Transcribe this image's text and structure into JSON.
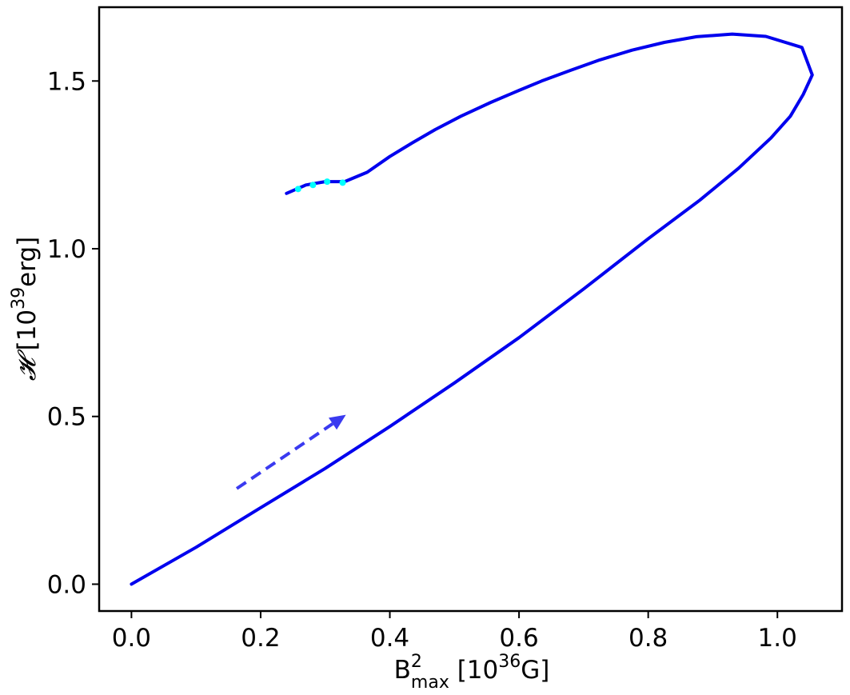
{
  "chart_data": {
    "type": "line",
    "xlabel": {
      "main": "B",
      "sup": "2",
      "sub": "max",
      "rest_pre": " [10",
      "rest_sup": "36",
      "rest_post": "G]"
    },
    "ylabel": {
      "symbol": "𝓗",
      "rest_pre": " [10",
      "rest_sup": "39",
      "rest_post": "erg]"
    },
    "xlim": [
      -0.05,
      1.1
    ],
    "ylim": [
      -0.08,
      1.72
    ],
    "x_ticks": [
      0.0,
      0.2,
      0.4,
      0.6,
      0.8,
      1.0
    ],
    "x_tick_labels": [
      "0.0",
      "0.2",
      "0.4",
      "0.6",
      "0.8",
      "1.0"
    ],
    "y_ticks": [
      0.0,
      0.5,
      1.0,
      1.5
    ],
    "y_tick_labels": [
      "0.0",
      "0.5",
      "1.0",
      "1.5"
    ],
    "grid": false,
    "colors": {
      "main_line": "#0000ee",
      "markers": "#00ffff",
      "arrow": "#3a3af0",
      "axes": "#000000"
    },
    "series": [
      {
        "points": [
          [
            0.0,
            0.0
          ],
          [
            0.1,
            0.11
          ],
          [
            0.2,
            0.228
          ],
          [
            0.3,
            0.345
          ],
          [
            0.4,
            0.47
          ],
          [
            0.5,
            0.6
          ],
          [
            0.6,
            0.735
          ],
          [
            0.7,
            0.88
          ],
          [
            0.8,
            1.03
          ],
          [
            0.88,
            1.145
          ],
          [
            0.94,
            1.24
          ],
          [
            0.99,
            1.33
          ],
          [
            1.02,
            1.395
          ],
          [
            1.04,
            1.46
          ],
          [
            1.054,
            1.518
          ],
          [
            1.038,
            1.6
          ],
          [
            0.982,
            1.633
          ],
          [
            0.93,
            1.64
          ],
          [
            0.875,
            1.632
          ],
          [
            0.825,
            1.615
          ],
          [
            0.775,
            1.592
          ],
          [
            0.725,
            1.563
          ],
          [
            0.68,
            1.532
          ],
          [
            0.635,
            1.5
          ],
          [
            0.6,
            1.472
          ],
          [
            0.555,
            1.435
          ],
          [
            0.51,
            1.395
          ],
          [
            0.47,
            1.355
          ],
          [
            0.435,
            1.316
          ],
          [
            0.4,
            1.275
          ],
          [
            0.365,
            1.228
          ],
          [
            0.33,
            1.2
          ],
          [
            0.3,
            1.2
          ],
          [
            0.27,
            1.19
          ],
          [
            0.24,
            1.165
          ]
        ]
      }
    ],
    "markers": [
      [
        0.258,
        1.178
      ],
      [
        0.281,
        1.19
      ],
      [
        0.303,
        1.2
      ],
      [
        0.327,
        1.197
      ]
    ],
    "arrow": {
      "from": [
        0.163,
        0.285
      ],
      "to": [
        0.332,
        0.505
      ],
      "style": "dashed"
    }
  }
}
